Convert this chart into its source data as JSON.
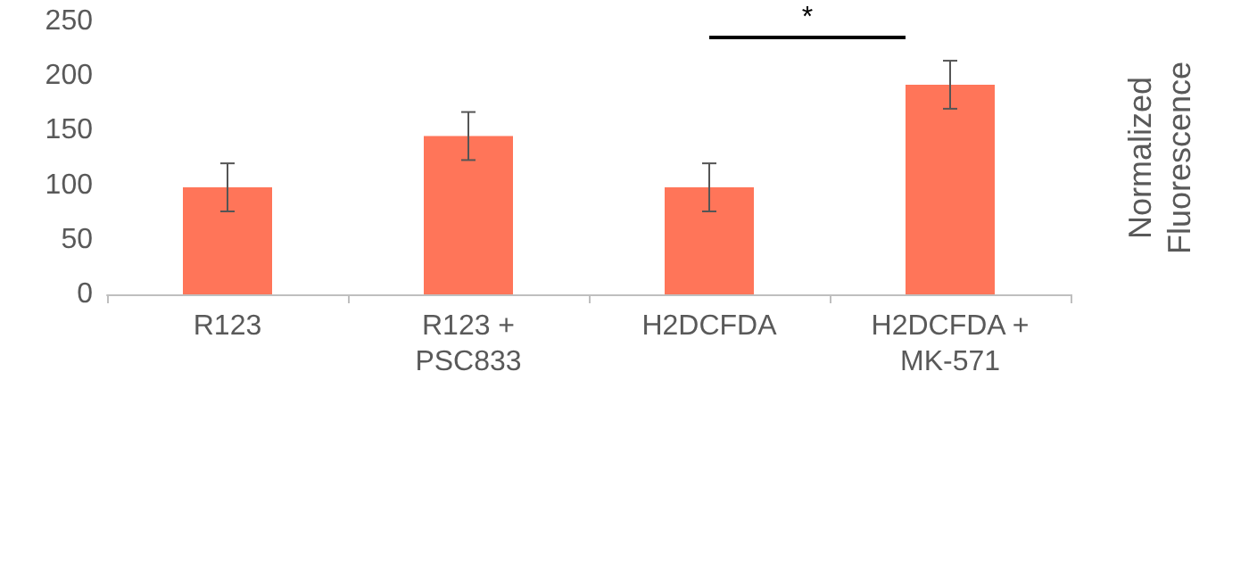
{
  "chart_data": {
    "type": "bar",
    "ylabel": "Normalized Fluorescence",
    "categories": [
      "R123",
      "R123 + PSC833",
      "H2DCFDA",
      "H2DCFDA + MK-571"
    ],
    "values": [
      98,
      145,
      98,
      192
    ],
    "errors": [
      22,
      22,
      22,
      22
    ],
    "color": "#ff7559",
    "ylim": [
      0,
      250
    ],
    "yticks": [
      0,
      50,
      100,
      150,
      200,
      250
    ],
    "grid": false,
    "annotations": [
      "*"
    ]
  }
}
